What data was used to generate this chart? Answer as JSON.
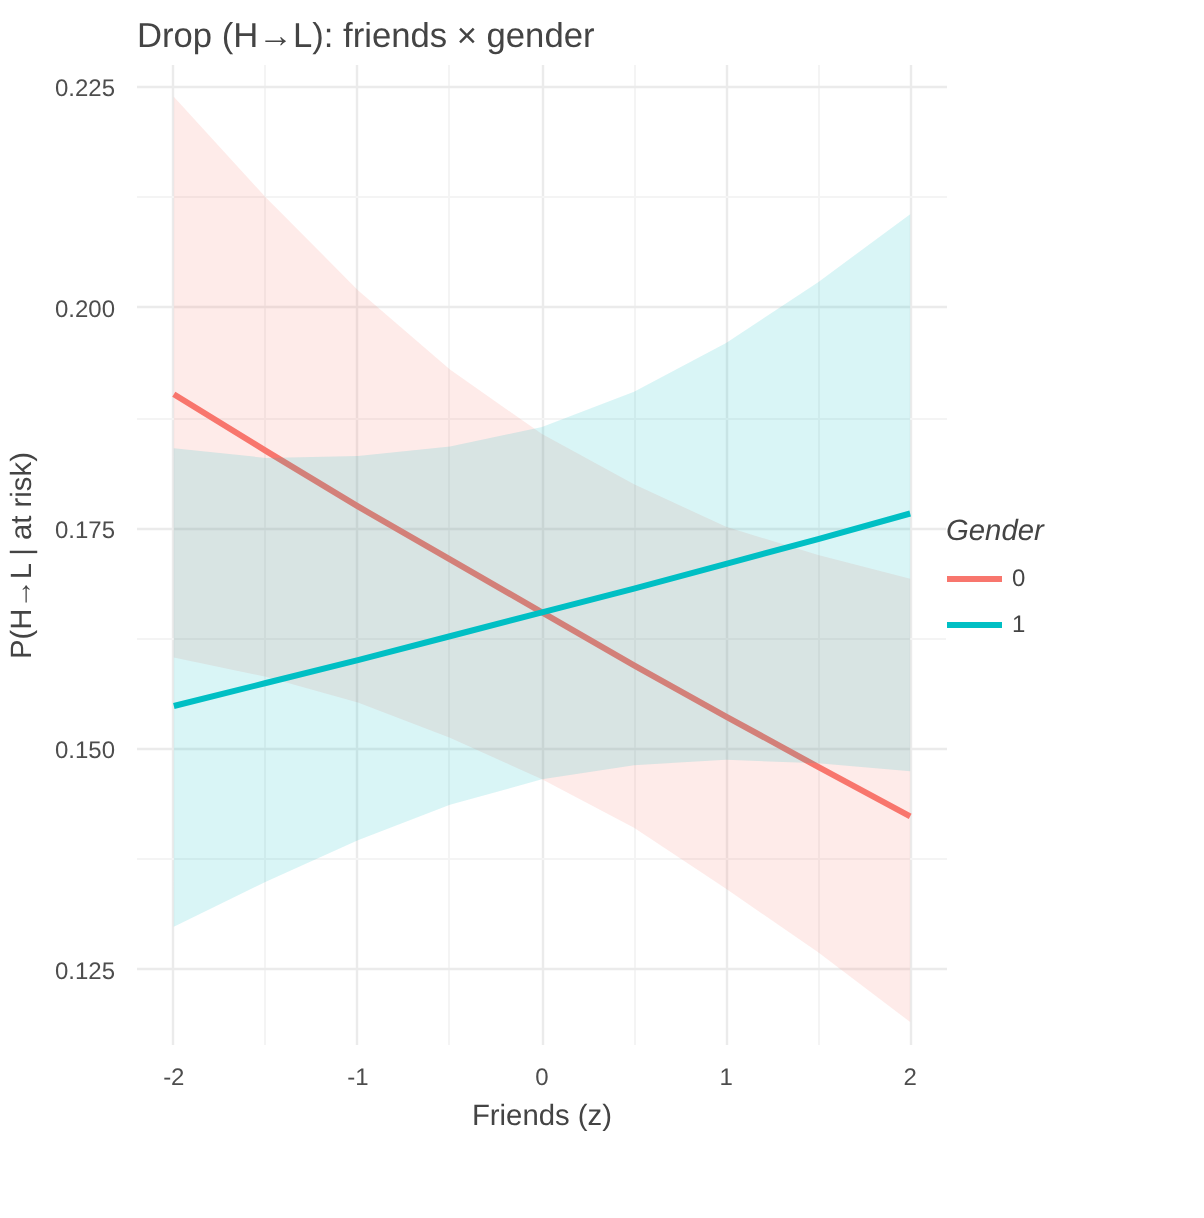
{
  "chart_data": {
    "type": "line",
    "title": "Drop (H→L): friends × gender",
    "xlabel": "Friends (z)",
    "ylabel": "P(H→L | at risk)",
    "legend_title": "Gender",
    "x": [
      -2,
      -1.5,
      -1,
      -0.5,
      0,
      0.5,
      1,
      1.5,
      2
    ],
    "series": [
      {
        "name": "0",
        "color": "#f8766d",
        "values": [
          0.1902,
          0.1838,
          0.1775,
          0.1715,
          0.1655,
          0.1595,
          0.1537,
          0.148,
          0.1424
        ],
        "lower": [
          0.1604,
          0.1582,
          0.1553,
          0.1513,
          0.1466,
          0.1411,
          0.1342,
          0.127,
          0.1191
        ],
        "upper": [
          0.2239,
          0.2125,
          0.202,
          0.193,
          0.1857,
          0.18,
          0.1752,
          0.172,
          0.1693
        ]
      },
      {
        "name": "1",
        "color": "#00bfc4",
        "values": [
          0.1549,
          0.1575,
          0.1601,
          0.1628,
          0.1655,
          0.1682,
          0.171,
          0.1738,
          0.1767
        ],
        "lower": [
          0.1299,
          0.135,
          0.1397,
          0.1437,
          0.1466,
          0.1482,
          0.1488,
          0.1484,
          0.1475
        ],
        "upper": [
          0.1841,
          0.183,
          0.1832,
          0.1843,
          0.1865,
          0.1905,
          0.196,
          0.2029,
          0.2106
        ]
      }
    ],
    "xlim": [
      -2.2,
      2.2
    ],
    "ylim": [
      0.1165,
      0.2275
    ],
    "xticks": [
      -2,
      -1,
      0,
      1,
      2
    ],
    "yticks": [
      0.125,
      {
        "value": 0.15,
        "label": "0.150"
      },
      0.175,
      {
        "value": 0.2,
        "label": "0.200"
      },
      0.225
    ],
    "grid": true,
    "legend": "right",
    "marker": "none",
    "line_style": "solid"
  }
}
